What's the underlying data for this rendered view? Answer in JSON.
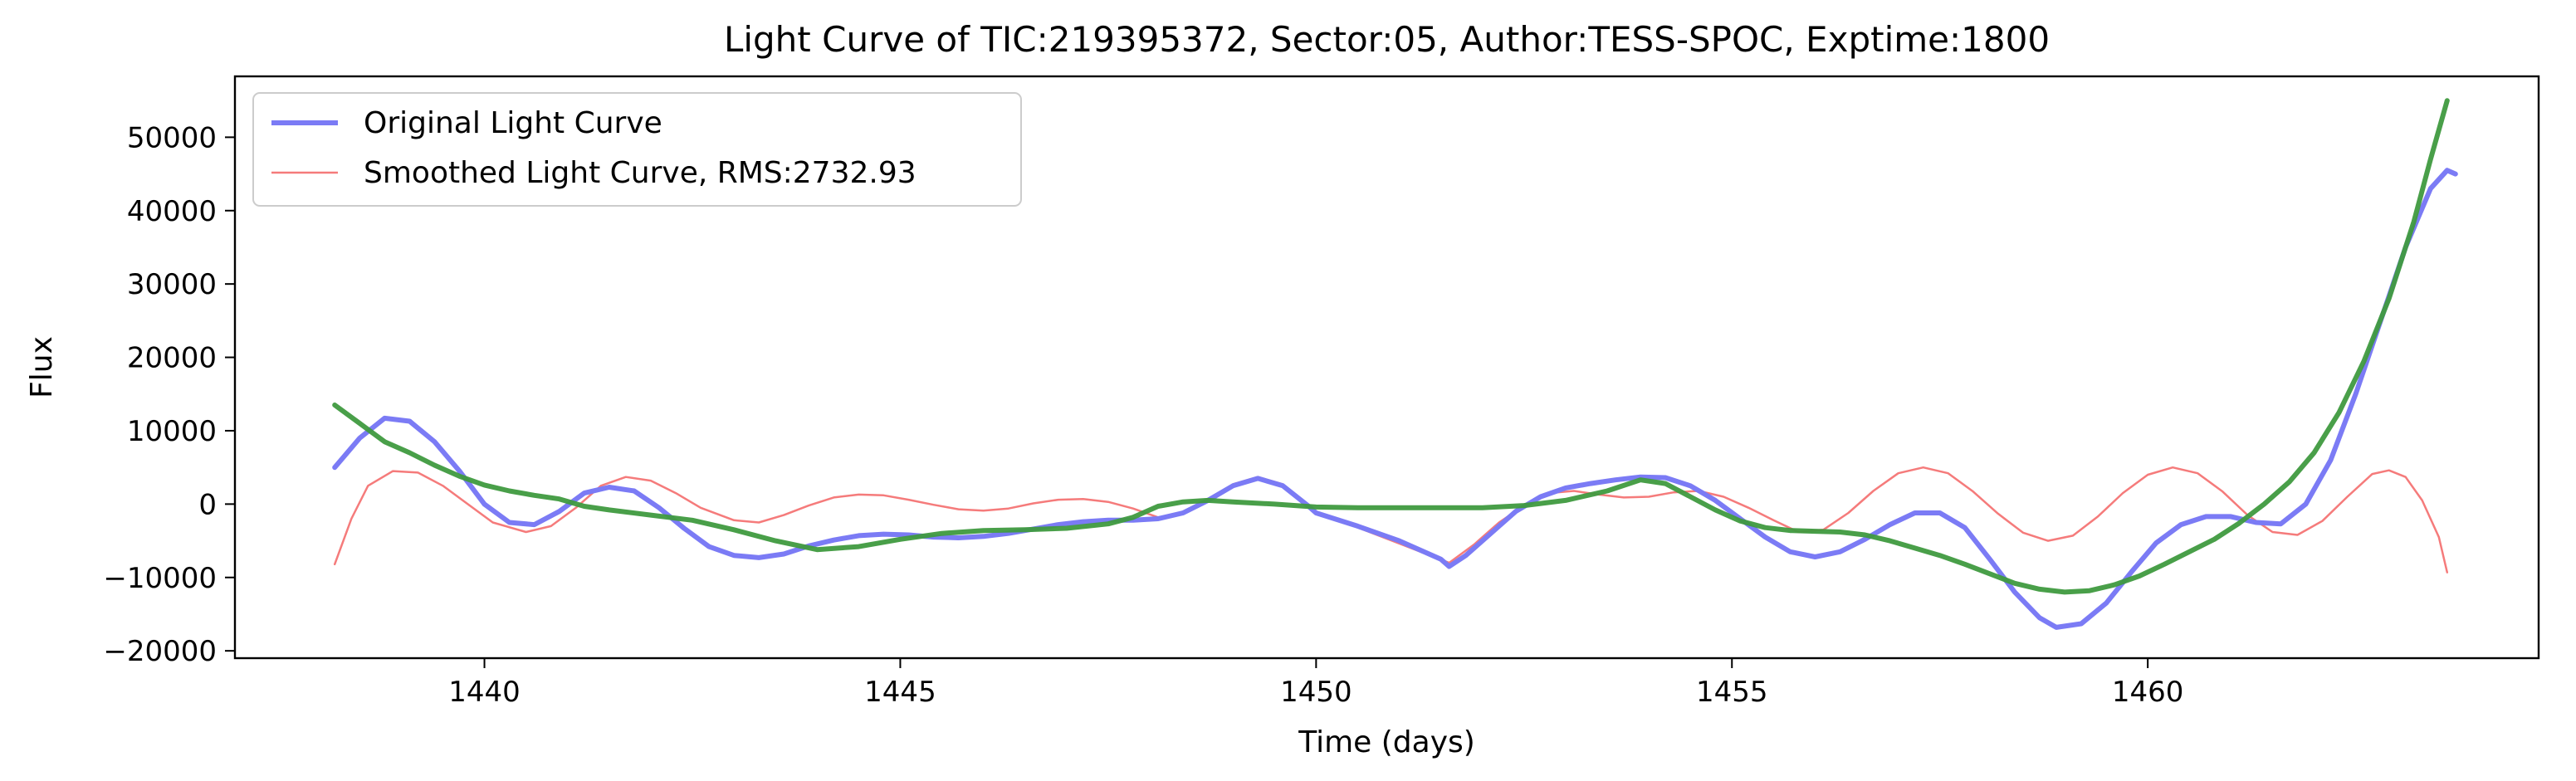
{
  "chart_data": {
    "type": "line",
    "title": "Light Curve of TIC:219395372, Sector:05, Author:TESS-SPOC, Exptime:1800",
    "xlabel": "Time (days)",
    "ylabel": "Flux",
    "xlim": [
      1437.0,
      1464.7
    ],
    "ylim": [
      -21000,
      58300
    ],
    "x_ticks": [
      1440,
      1445,
      1450,
      1455,
      1460
    ],
    "y_ticks": [
      -20000,
      -10000,
      0,
      10000,
      20000,
      30000,
      40000,
      50000
    ],
    "x_tick_labels": [
      "1440",
      "1445",
      "1450",
      "1455",
      "1460"
    ],
    "y_tick_labels": [
      "−20000",
      "−10000",
      "0",
      "10000",
      "20000",
      "30000",
      "40000",
      "50000"
    ],
    "grid": false,
    "legend_position": "upper-left",
    "series": [
      {
        "name": "Original Light Curve",
        "color": "#7b7bf5",
        "in_legend": true,
        "points": [
          [
            1438.2,
            5000
          ],
          [
            1438.5,
            9000
          ],
          [
            1438.8,
            11700
          ],
          [
            1439.1,
            11300
          ],
          [
            1439.4,
            8500
          ],
          [
            1439.7,
            4500
          ],
          [
            1440.0,
            0
          ],
          [
            1440.3,
            -2500
          ],
          [
            1440.6,
            -2800
          ],
          [
            1440.9,
            -1000
          ],
          [
            1441.2,
            1500
          ],
          [
            1441.5,
            2300
          ],
          [
            1441.8,
            1800
          ],
          [
            1442.1,
            -500
          ],
          [
            1442.4,
            -3300
          ],
          [
            1442.7,
            -5800
          ],
          [
            1443.0,
            -7000
          ],
          [
            1443.3,
            -7300
          ],
          [
            1443.6,
            -6800
          ],
          [
            1443.9,
            -5700
          ],
          [
            1444.2,
            -4900
          ],
          [
            1444.5,
            -4300
          ],
          [
            1444.8,
            -4100
          ],
          [
            1445.1,
            -4200
          ],
          [
            1445.4,
            -4500
          ],
          [
            1445.7,
            -4600
          ],
          [
            1446.0,
            -4400
          ],
          [
            1446.3,
            -4000
          ],
          [
            1446.6,
            -3400
          ],
          [
            1446.9,
            -2800
          ],
          [
            1447.2,
            -2400
          ],
          [
            1447.5,
            -2200
          ],
          [
            1447.8,
            -2200
          ],
          [
            1448.1,
            -2000
          ],
          [
            1448.4,
            -1200
          ],
          [
            1448.7,
            500
          ],
          [
            1449.0,
            2500
          ],
          [
            1449.3,
            3500
          ],
          [
            1449.6,
            2500
          ],
          [
            1449.9,
            -200
          ],
          [
            1450.0,
            -1200
          ],
          [
            1450.5,
            -3000
          ],
          [
            1451.0,
            -5000
          ],
          [
            1451.5,
            -7500
          ],
          [
            1451.6,
            -8500
          ],
          [
            1451.8,
            -7000
          ],
          [
            1452.1,
            -4000
          ],
          [
            1452.4,
            -1000
          ],
          [
            1452.7,
            1000
          ],
          [
            1453.0,
            2200
          ],
          [
            1453.3,
            2800
          ],
          [
            1453.6,
            3300
          ],
          [
            1453.9,
            3700
          ],
          [
            1454.2,
            3600
          ],
          [
            1454.5,
            2500
          ],
          [
            1454.8,
            500
          ],
          [
            1455.1,
            -2000
          ],
          [
            1455.4,
            -4500
          ],
          [
            1455.7,
            -6500
          ],
          [
            1456.0,
            -7200
          ],
          [
            1456.3,
            -6500
          ],
          [
            1456.6,
            -4800
          ],
          [
            1456.9,
            -2800
          ],
          [
            1457.2,
            -1200
          ],
          [
            1457.5,
            -1200
          ],
          [
            1457.8,
            -3200
          ],
          [
            1458.1,
            -7500
          ],
          [
            1458.4,
            -12000
          ],
          [
            1458.7,
            -15500
          ],
          [
            1458.9,
            -16800
          ],
          [
            1459.2,
            -16300
          ],
          [
            1459.5,
            -13500
          ],
          [
            1459.8,
            -9300
          ],
          [
            1460.1,
            -5300
          ],
          [
            1460.4,
            -2800
          ],
          [
            1460.7,
            -1700
          ],
          [
            1461.0,
            -1700
          ],
          [
            1461.3,
            -2500
          ],
          [
            1461.6,
            -2700
          ],
          [
            1461.9,
            0
          ],
          [
            1462.2,
            6000
          ],
          [
            1462.5,
            15000
          ],
          [
            1462.8,
            25000
          ],
          [
            1463.1,
            35000
          ],
          [
            1463.4,
            43000
          ],
          [
            1463.6,
            45500
          ],
          [
            1463.7,
            45000
          ]
        ]
      },
      {
        "name": "Smoothed Light Curve, RMS:2732.93",
        "color": "#f57b7b",
        "in_legend": true,
        "points": [
          [
            1438.2,
            -8200
          ],
          [
            1438.4,
            -2000
          ],
          [
            1438.6,
            2500
          ],
          [
            1438.9,
            4500
          ],
          [
            1439.2,
            4300
          ],
          [
            1439.5,
            2500
          ],
          [
            1439.8,
            0
          ],
          [
            1440.1,
            -2500
          ],
          [
            1440.5,
            -3800
          ],
          [
            1440.8,
            -3000
          ],
          [
            1441.1,
            -500
          ],
          [
            1441.4,
            2500
          ],
          [
            1441.7,
            3700
          ],
          [
            1442.0,
            3200
          ],
          [
            1442.3,
            1500
          ],
          [
            1442.6,
            -500
          ],
          [
            1443.0,
            -2200
          ],
          [
            1443.3,
            -2500
          ],
          [
            1443.6,
            -1500
          ],
          [
            1443.9,
            -200
          ],
          [
            1444.2,
            900
          ],
          [
            1444.5,
            1300
          ],
          [
            1444.8,
            1200
          ],
          [
            1445.1,
            600
          ],
          [
            1445.4,
            -100
          ],
          [
            1445.7,
            -700
          ],
          [
            1446.0,
            -900
          ],
          [
            1446.3,
            -600
          ],
          [
            1446.6,
            100
          ],
          [
            1446.9,
            600
          ],
          [
            1447.2,
            700
          ],
          [
            1447.5,
            300
          ],
          [
            1447.8,
            -600
          ],
          [
            1448.1,
            -1800
          ],
          [
            1448.4,
            -1300
          ],
          [
            1448.7,
            500
          ],
          [
            1449.0,
            2700
          ],
          [
            1449.3,
            3700
          ],
          [
            1449.6,
            2700
          ],
          [
            1449.9,
            -100
          ],
          [
            1450.0,
            -1000
          ],
          [
            1451.6,
            -8000
          ],
          [
            1451.9,
            -5500
          ],
          [
            1452.2,
            -2500
          ],
          [
            1452.5,
            -200
          ],
          [
            1452.8,
            1500
          ],
          [
            1453.1,
            1800
          ],
          [
            1453.4,
            1300
          ],
          [
            1453.7,
            900
          ],
          [
            1454.0,
            1000
          ],
          [
            1454.3,
            1600
          ],
          [
            1454.6,
            1800
          ],
          [
            1454.9,
            1000
          ],
          [
            1455.2,
            -500
          ],
          [
            1455.5,
            -2200
          ],
          [
            1455.8,
            -3800
          ],
          [
            1456.1,
            -3500
          ],
          [
            1456.4,
            -1200
          ],
          [
            1456.7,
            1800
          ],
          [
            1457.0,
            4200
          ],
          [
            1457.3,
            5000
          ],
          [
            1457.6,
            4200
          ],
          [
            1457.9,
            1700
          ],
          [
            1458.2,
            -1300
          ],
          [
            1458.5,
            -3900
          ],
          [
            1458.8,
            -5000
          ],
          [
            1459.1,
            -4300
          ],
          [
            1459.4,
            -1700
          ],
          [
            1459.7,
            1500
          ],
          [
            1460.0,
            4000
          ],
          [
            1460.3,
            5000
          ],
          [
            1460.6,
            4200
          ],
          [
            1460.9,
            1700
          ],
          [
            1461.2,
            -1500
          ],
          [
            1461.5,
            -3800
          ],
          [
            1461.8,
            -4200
          ],
          [
            1462.1,
            -2300
          ],
          [
            1462.4,
            1000
          ],
          [
            1462.7,
            4100
          ],
          [
            1462.9,
            4600
          ],
          [
            1463.1,
            3700
          ],
          [
            1463.3,
            500
          ],
          [
            1463.5,
            -4500
          ],
          [
            1463.6,
            -9300
          ]
        ]
      },
      {
        "name": "",
        "color": "#3f9a3f",
        "in_legend": false,
        "points": [
          [
            1438.2,
            13500
          ],
          [
            1438.5,
            11000
          ],
          [
            1438.8,
            8500
          ],
          [
            1439.1,
            7000
          ],
          [
            1439.4,
            5300
          ],
          [
            1439.7,
            3800
          ],
          [
            1440.0,
            2600
          ],
          [
            1440.3,
            1800
          ],
          [
            1440.6,
            1200
          ],
          [
            1440.9,
            700
          ],
          [
            1441.2,
            -300
          ],
          [
            1441.5,
            -800
          ],
          [
            1442.0,
            -1500
          ],
          [
            1442.5,
            -2200
          ],
          [
            1443.0,
            -3500
          ],
          [
            1443.5,
            -5000
          ],
          [
            1444.0,
            -6200
          ],
          [
            1444.5,
            -5800
          ],
          [
            1445.0,
            -4800
          ],
          [
            1445.5,
            -4000
          ],
          [
            1446.0,
            -3600
          ],
          [
            1446.5,
            -3500
          ],
          [
            1447.0,
            -3300
          ],
          [
            1447.5,
            -2700
          ],
          [
            1447.8,
            -1800
          ],
          [
            1448.1,
            -300
          ],
          [
            1448.4,
            300
          ],
          [
            1448.7,
            500
          ],
          [
            1449.0,
            300
          ],
          [
            1449.5,
            0
          ],
          [
            1450.0,
            -400
          ],
          [
            1450.5,
            -500
          ],
          [
            1451.0,
            -500
          ],
          [
            1451.5,
            -500
          ],
          [
            1452.0,
            -500
          ],
          [
            1452.5,
            -200
          ],
          [
            1453.0,
            500
          ],
          [
            1453.5,
            1800
          ],
          [
            1453.9,
            3300
          ],
          [
            1454.2,
            2800
          ],
          [
            1454.5,
            1000
          ],
          [
            1454.8,
            -800
          ],
          [
            1455.1,
            -2300
          ],
          [
            1455.4,
            -3200
          ],
          [
            1455.7,
            -3600
          ],
          [
            1456.0,
            -3700
          ],
          [
            1456.3,
            -3800
          ],
          [
            1456.6,
            -4200
          ],
          [
            1456.9,
            -5000
          ],
          [
            1457.2,
            -6000
          ],
          [
            1457.5,
            -7000
          ],
          [
            1457.8,
            -8200
          ],
          [
            1458.1,
            -9500
          ],
          [
            1458.4,
            -10800
          ],
          [
            1458.7,
            -11600
          ],
          [
            1459.0,
            -12000
          ],
          [
            1459.3,
            -11800
          ],
          [
            1459.6,
            -11000
          ],
          [
            1459.9,
            -9800
          ],
          [
            1460.2,
            -8200
          ],
          [
            1460.5,
            -6500
          ],
          [
            1460.8,
            -4800
          ],
          [
            1461.1,
            -2600
          ],
          [
            1461.4,
            0
          ],
          [
            1461.7,
            3000
          ],
          [
            1462.0,
            7000
          ],
          [
            1462.3,
            12500
          ],
          [
            1462.6,
            19500
          ],
          [
            1462.9,
            28000
          ],
          [
            1463.2,
            38500
          ],
          [
            1463.4,
            47000
          ],
          [
            1463.6,
            55000
          ]
        ]
      }
    ]
  }
}
